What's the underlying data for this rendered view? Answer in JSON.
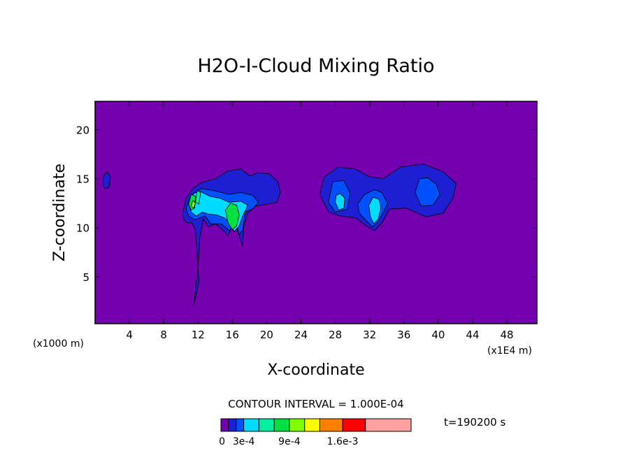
{
  "chart_data": {
    "type": "contour",
    "title": "H2O-I-Cloud Mixing Ratio",
    "xlabel": "X-coordinate",
    "ylabel": "Z-coordinate",
    "x_unit_left": "(x1000 m)",
    "x_unit_right": "(x1E4 m)",
    "xlim": [
      0,
      51.5
    ],
    "ylim": [
      0.2,
      22.9
    ],
    "x_ticks": [
      4,
      8,
      12,
      16,
      20,
      24,
      28,
      32,
      36,
      40,
      44,
      48
    ],
    "x_tick_labels": [
      "4",
      "8",
      "12",
      "16",
      "20",
      "24",
      "28",
      "32",
      "36",
      "40",
      "44",
      "48"
    ],
    "y_ticks": [
      5,
      10,
      15,
      20
    ],
    "y_tick_labels": [
      "5",
      "10",
      "15",
      "20"
    ],
    "background_color": "#7400b0",
    "contour_interval_label": "CONTOUR INTERVAL = 1.000E-04",
    "time_label": "t=190200 s",
    "colorbar": {
      "colors": [
        "#7400b0",
        "#1e1ed2",
        "#0050ff",
        "#00dcff",
        "#00f0a0",
        "#00e040",
        "#80ff00",
        "#ffff00",
        "#ff8000",
        "#ff0000",
        "#ffa0a0"
      ],
      "bounds": [
        0,
        0.0001,
        0.0002,
        0.0003,
        0.0005,
        0.0007,
        0.0009,
        0.0011,
        0.0013,
        0.0016,
        0.0019,
        0.0025
      ],
      "tick_values": [
        0,
        0.0003,
        0.0009,
        0.0016
      ],
      "tick_labels": [
        "0",
        "3e-4",
        "9e-4",
        "1.6e-3"
      ]
    },
    "regions": [
      {
        "level": 1,
        "color": "#1e1ed2",
        "points": [
          [
            1.0,
            15.3
          ],
          [
            1.4,
            15.7
          ],
          [
            1.8,
            15.2
          ],
          [
            1.6,
            14.1
          ],
          [
            1.1,
            14.0
          ],
          [
            0.9,
            14.6
          ]
        ]
      },
      {
        "level": 1,
        "color": "#1e1ed2",
        "points": [
          [
            10.2,
            11.4
          ],
          [
            10.6,
            13.0
          ],
          [
            11.4,
            14.0
          ],
          [
            12.4,
            14.6
          ],
          [
            14.0,
            15.0
          ],
          [
            15.5,
            15.8
          ],
          [
            17.0,
            16.0
          ],
          [
            18.0,
            15.3
          ],
          [
            19.0,
            15.6
          ],
          [
            20.3,
            15.5
          ],
          [
            21.3,
            14.7
          ],
          [
            21.6,
            13.6
          ],
          [
            21.2,
            12.6
          ],
          [
            20.0,
            12.4
          ],
          [
            18.7,
            12.2
          ],
          [
            17.8,
            11.5
          ],
          [
            17.3,
            10.0
          ],
          [
            17.2,
            8.1
          ],
          [
            16.8,
            9.2
          ],
          [
            16.2,
            10.6
          ],
          [
            15.5,
            9.2
          ],
          [
            14.6,
            10.0
          ],
          [
            14.0,
            10.4
          ],
          [
            13.2,
            10.1
          ],
          [
            12.6,
            10.9
          ],
          [
            12.2,
            9.0
          ],
          [
            12.0,
            6.0
          ],
          [
            11.6,
            3.0
          ],
          [
            11.5,
            2.0
          ],
          [
            12.1,
            4.5
          ],
          [
            11.7,
            9.8
          ],
          [
            11.3,
            10.5
          ],
          [
            10.7,
            10.5
          ],
          [
            10.3,
            10.9
          ]
        ]
      },
      {
        "level": 1,
        "color": "#1e1ed2",
        "points": [
          [
            26.2,
            13.4
          ],
          [
            26.7,
            15.2
          ],
          [
            28.3,
            16.2
          ],
          [
            30.3,
            16.0
          ],
          [
            32.0,
            15.2
          ],
          [
            33.6,
            15.0
          ],
          [
            35.6,
            16.2
          ],
          [
            38.3,
            16.5
          ],
          [
            40.6,
            15.7
          ],
          [
            42.1,
            14.5
          ],
          [
            41.7,
            13.0
          ],
          [
            40.6,
            11.5
          ],
          [
            38.6,
            11.1
          ],
          [
            37.3,
            11.6
          ],
          [
            36.3,
            12.0
          ],
          [
            34.3,
            11.9
          ],
          [
            33.5,
            10.6
          ],
          [
            32.6,
            9.7
          ],
          [
            31.6,
            10.2
          ],
          [
            30.4,
            11.0
          ],
          [
            28.6,
            11.2
          ],
          [
            27.2,
            11.6
          ]
        ]
      },
      {
        "level": 2,
        "color": "#0050ff",
        "points": [
          [
            10.6,
            12.0
          ],
          [
            11.2,
            13.3
          ],
          [
            12.4,
            14.0
          ],
          [
            13.8,
            13.8
          ],
          [
            15.6,
            13.4
          ],
          [
            17.0,
            13.6
          ],
          [
            18.4,
            13.3
          ],
          [
            19.0,
            12.6
          ],
          [
            18.5,
            12.0
          ],
          [
            17.5,
            11.6
          ],
          [
            17.2,
            9.8
          ],
          [
            16.8,
            9.3
          ],
          [
            16.4,
            10.6
          ],
          [
            15.7,
            9.7
          ],
          [
            14.7,
            10.4
          ],
          [
            13.5,
            10.4
          ],
          [
            12.8,
            11.2
          ],
          [
            11.6,
            10.8
          ],
          [
            10.9,
            11.2
          ]
        ]
      },
      {
        "level": 2,
        "color": "#0050ff",
        "points": [
          [
            27.2,
            12.6
          ],
          [
            27.7,
            14.7
          ],
          [
            29.0,
            14.8
          ],
          [
            29.7,
            13.6
          ],
          [
            29.4,
            11.9
          ],
          [
            28.0,
            11.6
          ]
        ]
      },
      {
        "level": 2,
        "color": "#0050ff",
        "points": [
          [
            30.6,
            12.4
          ],
          [
            31.4,
            13.4
          ],
          [
            32.6,
            13.9
          ],
          [
            33.4,
            13.6
          ],
          [
            34.1,
            12.5
          ],
          [
            33.5,
            11.4
          ],
          [
            32.8,
            10.4
          ],
          [
            32.3,
            10.1
          ],
          [
            31.3,
            11.0
          ],
          [
            30.8,
            11.5
          ]
        ]
      },
      {
        "level": 2,
        "color": "#0050ff",
        "points": [
          [
            37.3,
            13.6
          ],
          [
            37.8,
            15.0
          ],
          [
            38.8,
            15.1
          ],
          [
            39.8,
            14.4
          ],
          [
            40.2,
            13.4
          ],
          [
            39.4,
            12.3
          ],
          [
            38.0,
            12.2
          ]
        ]
      },
      {
        "level": 4,
        "color": "#00dcff",
        "points": [
          [
            10.9,
            12.4
          ],
          [
            11.5,
            13.5
          ],
          [
            12.3,
            13.7
          ],
          [
            13.4,
            13.2
          ],
          [
            14.6,
            13.0
          ],
          [
            15.6,
            12.6
          ],
          [
            17.0,
            12.7
          ],
          [
            17.8,
            12.3
          ],
          [
            17.2,
            11.2
          ],
          [
            16.8,
            10.2
          ],
          [
            16.2,
            9.6
          ],
          [
            15.9,
            10.3
          ],
          [
            15.1,
            11.0
          ],
          [
            14.2,
            11.3
          ],
          [
            13.2,
            11.4
          ],
          [
            12.5,
            11.6
          ],
          [
            11.8,
            11.2
          ],
          [
            11.2,
            11.6
          ]
        ]
      },
      {
        "level": 4,
        "color": "#00dcff",
        "points": [
          [
            28.0,
            12.6
          ],
          [
            28.1,
            13.3
          ],
          [
            28.6,
            13.5
          ],
          [
            29.1,
            13.0
          ],
          [
            29.0,
            12.0
          ],
          [
            28.4,
            11.8
          ]
        ]
      },
      {
        "level": 4,
        "color": "#00dcff",
        "points": [
          [
            31.9,
            12.3
          ],
          [
            32.4,
            13.1
          ],
          [
            33.1,
            12.9
          ],
          [
            33.3,
            12.0
          ],
          [
            33.0,
            10.9
          ],
          [
            32.5,
            10.4
          ],
          [
            32.1,
            11.1
          ]
        ]
      },
      {
        "level": 6,
        "color": "#00e040",
        "points": [
          [
            15.2,
            11.8
          ],
          [
            15.8,
            12.5
          ],
          [
            16.5,
            12.3
          ],
          [
            16.8,
            11.3
          ],
          [
            16.5,
            10.2
          ],
          [
            16.0,
            9.8
          ],
          [
            15.5,
            10.5
          ]
        ]
      },
      {
        "level": 6,
        "color": "#00e040",
        "points": [
          [
            10.9,
            12.4
          ],
          [
            11.2,
            13.4
          ],
          [
            11.7,
            13.2
          ],
          [
            11.6,
            12.0
          ],
          [
            11.2,
            11.8
          ]
        ]
      },
      {
        "level": 7,
        "color": "#80ff00",
        "points": [
          [
            11.2,
            12.2
          ],
          [
            11.4,
            12.8
          ],
          [
            11.7,
            12.5
          ],
          [
            11.5,
            12.0
          ]
        ]
      },
      {
        "level": 5,
        "color": "#00f0a0",
        "points": [
          [
            11.7,
            12.6
          ],
          [
            11.9,
            13.8
          ],
          [
            12.3,
            13.6
          ],
          [
            12.1,
            12.4
          ]
        ]
      }
    ]
  }
}
